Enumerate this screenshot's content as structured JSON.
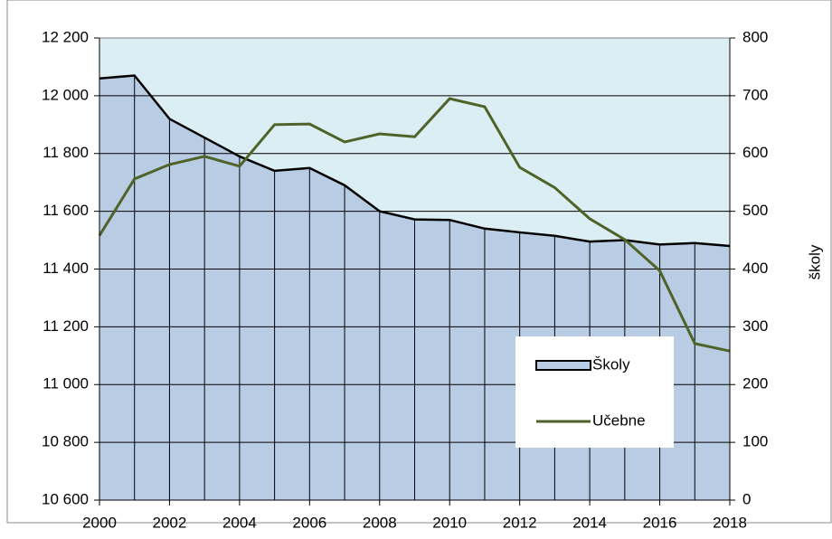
{
  "chart_data": {
    "type": "combo",
    "x": [
      2000,
      2001,
      2002,
      2003,
      2004,
      2005,
      2006,
      2007,
      2008,
      2009,
      2010,
      2011,
      2012,
      2013,
      2014,
      2015,
      2016,
      2017,
      2018
    ],
    "series": [
      {
        "name": "Školy",
        "type": "area",
        "color": "#b8cce4",
        "values": [
          12060,
          12070,
          11920,
          11855,
          11790,
          11740,
          11750,
          11690,
          11600,
          11572,
          11570,
          11540,
          11527,
          11515,
          11495,
          11500,
          11485,
          11490,
          11480
        ]
      },
      {
        "name": "Učebne",
        "type": "line",
        "axis": "y2",
        "color": "#4f6228",
        "values": [
          458,
          556,
          581,
          595,
          578,
          650,
          651,
          620,
          634,
          629,
          695,
          681,
          576,
          541,
          487,
          451,
          397,
          271,
          258
        ]
      }
    ],
    "xlim": [
      2000,
      2018
    ],
    "xticks": [
      2000,
      2002,
      2004,
      2006,
      2008,
      2010,
      2012,
      2014,
      2016,
      2018
    ],
    "ylim": [
      10600,
      12200
    ],
    "yticks": [
      {
        "value": 10600,
        "label": "10 600"
      },
      {
        "value": 10800,
        "label": "10 800"
      },
      {
        "value": 11000,
        "label": "11 000"
      },
      {
        "value": 11200,
        "label": "11 200"
      },
      {
        "value": 11400,
        "label": "11 400"
      },
      {
        "value": 11600,
        "label": "11 600"
      },
      {
        "value": 11800,
        "label": "11 800"
      },
      {
        "value": 12000,
        "label": "12 000"
      },
      {
        "value": 12200,
        "label": "12 200"
      }
    ],
    "y2lim": [
      0,
      800
    ],
    "y2ticks": [
      0,
      100,
      200,
      300,
      400,
      500,
      600,
      700,
      800
    ],
    "y2label": "školy",
    "grid": true,
    "background": "#dbeef4"
  }
}
